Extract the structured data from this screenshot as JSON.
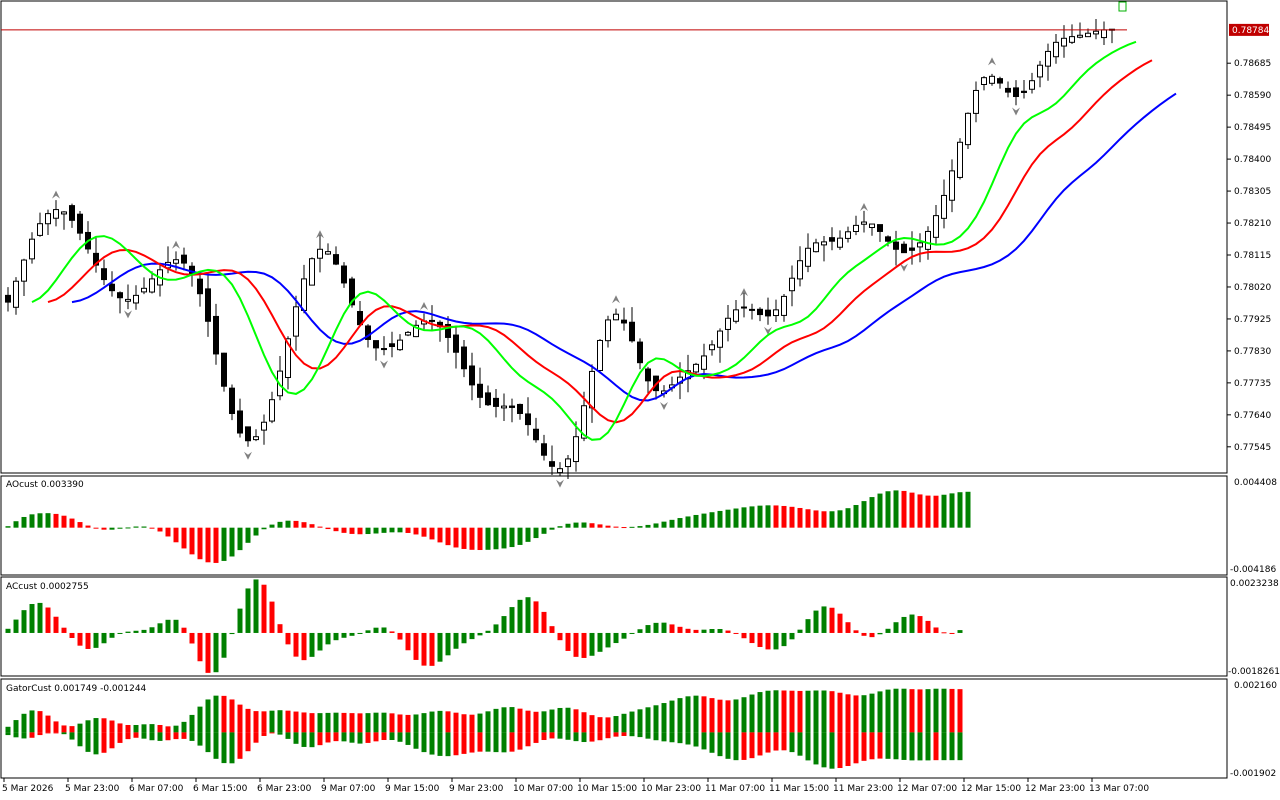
{
  "colors": {
    "background": "#ffffff",
    "frame": "#000000",
    "up_bar": "#008000",
    "down_bar": "#ff0000",
    "alligator_jaw": "#0000ff",
    "alligator_teeth": "#ff0000",
    "alligator_lips": "#00ff00",
    "price_line": "#c00000",
    "price_label_bg": "#c00000",
    "price_label_text": "#ffffff",
    "fractal": "#808080",
    "candle_bull": "#ffffff",
    "candle_bear": "#000000"
  },
  "main": {
    "current_price_label": "0.78784",
    "price_ticks": [
      "0.78685",
      "0.78590",
      "0.78495",
      "0.78400",
      "0.78305",
      "0.78210",
      "0.78115",
      "0.78020",
      "0.77925",
      "0.77830",
      "0.77735",
      "0.77640",
      "0.77545"
    ],
    "price_tick_values": [
      0.78685,
      0.7859,
      0.78495,
      0.784,
      0.78305,
      0.7821,
      0.78115,
      0.7802,
      0.77925,
      0.7783,
      0.77735,
      0.7764,
      0.77545
    ]
  },
  "ao_panel": {
    "label": "AOcust 0.003390",
    "max_label": "0.004408",
    "min_label": "-0.004186"
  },
  "ac_panel": {
    "label": "ACcust 0.0002755",
    "max_label": "0.0023238",
    "min_label": "-0.0018261"
  },
  "gator_panel": {
    "label": "GatorCust 0.001749 -0.001244",
    "max_label": "0.002160",
    "min_label": "-0.001902"
  },
  "time_axis": {
    "labels": [
      "5 Mar 2026",
      "5 Mar 23:00",
      "6 Mar 07:00",
      "6 Mar 15:00",
      "6 Mar 23:00",
      "9 Mar 07:00",
      "9 Mar 15:00",
      "9 Mar 23:00",
      "10 Mar 07:00",
      "10 Mar 15:00",
      "10 Mar 23:00",
      "11 Mar 07:00",
      "11 Mar 15:00",
      "11 Mar 23:00",
      "12 Mar 07:00",
      "12 Mar 15:00",
      "12 Mar 23:00",
      "13 Mar 07:00"
    ],
    "label_bars": [
      0,
      8,
      16,
      24,
      32,
      40,
      48,
      56,
      64,
      72,
      80,
      88,
      96,
      104,
      112,
      120,
      128,
      136
    ]
  },
  "chart_data": {
    "type": "candlestick",
    "symbol_price_current": 0.78784,
    "ylim": [
      0.77482,
      0.78855
    ],
    "bars": 139,
    "close": [
      0.77975,
      0.78037,
      0.781,
      0.78162,
      0.78208,
      0.78238,
      0.7825,
      0.78243,
      0.78218,
      0.7818,
      0.78133,
      0.78085,
      0.78042,
      0.78009,
      0.77988,
      0.77983,
      0.77995,
      0.78016,
      0.78044,
      0.78071,
      0.78093,
      0.78101,
      0.78091,
      0.78058,
      0.78,
      0.77918,
      0.77821,
      0.77725,
      0.77644,
      0.77586,
      0.77563,
      0.77575,
      0.77618,
      0.77685,
      0.7777,
      0.77866,
      0.77961,
      0.78044,
      0.78104,
      0.78132,
      0.78125,
      0.78088,
      0.78032,
      0.77967,
      0.77908,
      0.77864,
      0.77839,
      0.77834,
      0.77843,
      0.77862,
      0.77885,
      0.77906,
      0.77919,
      0.77918,
      0.77902,
      0.7787,
      0.77826,
      0.77777,
      0.77729,
      0.77692,
      0.7767,
      0.77665,
      0.77666,
      0.77662,
      0.77644,
      0.77611,
      0.77566,
      0.7752,
      0.77487,
      0.7748,
      0.77509,
      0.77575,
      0.77667,
      0.77769,
      0.77861,
      0.77922,
      0.77939,
      0.77913,
      0.7786,
      0.77795,
      0.77741,
      0.77712,
      0.77711,
      0.77729,
      0.77752,
      0.77771,
      0.7779,
      0.77815,
      0.77848,
      0.77889,
      0.77927,
      0.77952,
      0.7796,
      0.77951,
      0.77938,
      0.77934,
      0.77952,
      0.77992,
      0.78046,
      0.78098,
      0.78135,
      0.78151,
      0.78154,
      0.78156,
      0.78165,
      0.78184,
      0.78203,
      0.78213,
      0.78207,
      0.78185,
      0.78156,
      0.78132,
      0.78122,
      0.78129,
      0.78151,
      0.78185,
      0.78232,
      0.78292,
      0.78365,
      0.7845,
      0.78536,
      0.78604,
      0.78642,
      0.78646,
      0.78626,
      0.78599,
      0.78586,
      0.78598,
      0.78633,
      0.78679,
      0.7872,
      0.78747,
      0.78759,
      0.78764,
      0.78768,
      0.78774,
      0.7878,
      0.78784,
      0.78784
    ],
    "ao_values": [
      0.00014,
      0.00061,
      0.00101,
      0.00126,
      0.00136,
      0.00137,
      0.0013,
      0.00113,
      0.00086,
      0.00053,
      0.0002,
      -6e-05,
      -0.00019,
      -0.00019,
      -0.0001,
      2e-05,
      0.00011,
      0.00011,
      -4e-05,
      -0.00036,
      -0.00083,
      -0.00138,
      -0.00196,
      -0.00252,
      -0.00298,
      -0.00327,
      -0.00333,
      -0.00314,
      -0.00272,
      -0.00212,
      -0.00143,
      -0.00074,
      -0.00015,
      0.00029,
      0.00055,
      0.00066,
      0.00064,
      0.00052,
      0.00033,
      0.0001,
      -0.00013,
      -0.00033,
      -0.00049,
      -0.00059,
      -0.00062,
      -0.0006,
      -0.00055,
      -0.00049,
      -0.00044,
      -0.00044,
      -0.0005,
      -0.00064,
      -0.00085,
      -0.00111,
      -0.00139,
      -0.00165,
      -0.00187,
      -0.00201,
      -0.00209,
      -0.00211,
      -0.00209,
      -0.00204,
      -0.00196,
      -0.00183,
      -0.00163,
      -0.00134,
      -0.00098,
      -0.00058,
      -0.00019,
      0.00014,
      0.00037,
      0.00048,
      0.00049,
      0.00042,
      0.00031,
      0.00019,
      0.0001,
      6e-05,
      8e-05,
      0.00015,
      0.00026,
      0.0004,
      0.00057,
      0.00074,
      0.00091,
      0.00106,
      0.0012,
      0.00133,
      0.00146,
      0.00158,
      0.0017,
      0.00181,
      0.00192,
      0.00201,
      0.00208,
      0.00211,
      0.0021,
      0.00205,
      0.00197,
      0.00186,
      0.00174,
      0.00163,
      0.00155,
      0.00155,
      0.00164,
      0.00184,
      0.00214,
      0.00251,
      0.00289,
      0.00322,
      0.00344,
      0.00352,
      0.00347,
      0.00331,
      0.00314,
      0.00303,
      0.00302,
      0.00311,
      0.00324,
      0.00335,
      0.00339
    ],
    "ac_values": [
      0.00019,
      0.00061,
      0.00104,
      0.00132,
      0.00137,
      0.00116,
      0.00074,
      0.00024,
      -0.00023,
      -0.00058,
      -0.00073,
      -0.00068,
      -0.00047,
      -0.00022,
      -3e-05,
      6e-05,
      0.0001,
      0.00014,
      0.00026,
      0.00044,
      0.0006,
      0.0006,
      0.00024,
      -0.00048,
      -0.00129,
      -0.00182,
      -0.00179,
      -0.00113,
      -5e-05,
      0.00111,
      0.00203,
      0.00244,
      0.0022,
      0.00143,
      0.0004,
      -0.00052,
      -0.00108,
      -0.00124,
      -0.00109,
      -0.0008,
      -0.00052,
      -0.00033,
      -0.00022,
      -0.00013,
      -2e-05,
      0.00012,
      0.00024,
      0.00025,
      7e-05,
      -0.0003,
      -0.00079,
      -0.00123,
      -0.00149,
      -0.0015,
      -0.00131,
      -0.00102,
      -0.00072,
      -0.00047,
      -0.00028,
      -0.00011,
      0.0001,
      0.00039,
      0.00077,
      0.00118,
      0.00151,
      0.00163,
      0.00144,
      0.00096,
      0.00031,
      -0.00033,
      -0.00082,
      -0.00109,
      -0.00114,
      -0.00104,
      -0.00086,
      -0.00066,
      -0.00046,
      -0.00026,
      -4e-05,
      0.00017,
      0.00036,
      0.00046,
      0.00047,
      0.00039,
      0.00028,
      0.00019,
      0.00014,
      0.00015,
      0.00018,
      0.00018,
      0.00011,
      -4e-05,
      -0.00024,
      -0.00046,
      -0.00064,
      -0.00075,
      -0.00075,
      -0.0006,
      -0.00029,
      0.00015,
      0.00063,
      0.00102,
      0.00121,
      0.00115,
      0.00088,
      0.00049,
      0.00012,
      -0.00013,
      -0.00019,
      -6e-05,
      0.00019,
      0.00049,
      0.00073,
      0.00084,
      0.00077,
      0.00055,
      0.00025,
      3e-05,
      -1e-05,
      0.00013
    ],
    "gator_upper": [
      0.00025,
      0.00055,
      0.00083,
      0.00098,
      0.00095,
      0.00075,
      0.00049,
      0.00031,
      0.00028,
      0.00039,
      0.00054,
      0.00064,
      0.00063,
      0.00053,
      0.0004,
      0.00033,
      0.00033,
      0.00036,
      0.00037,
      0.00033,
      0.00027,
      0.0003,
      0.00047,
      0.00078,
      0.00115,
      0.00147,
      0.00164,
      0.00163,
      0.00147,
      0.00124,
      0.00105,
      0.00095,
      0.00094,
      0.00097,
      0.00099,
      0.00097,
      0.00093,
      0.00089,
      0.00086,
      0.00086,
      0.00087,
      0.00088,
      0.00087,
      0.00086,
      0.00085,
      0.00086,
      0.00088,
      0.00088,
      0.00085,
      0.0008,
      0.00078,
      0.0008,
      0.00086,
      0.00093,
      0.00096,
      0.00094,
      0.00088,
      0.00081,
      0.00079,
      0.00084,
      0.00094,
      0.00105,
      0.00112,
      0.00113,
      0.00106,
      0.00097,
      0.00092,
      0.00094,
      0.00102,
      0.00109,
      0.0011,
      0.00103,
      0.0009,
      0.00077,
      0.00068,
      0.00067,
      0.00073,
      0.00083,
      0.00093,
      0.00103,
      0.00112,
      0.00121,
      0.00131,
      0.00142,
      0.00153,
      0.00161,
      0.00164,
      0.00161,
      0.00153,
      0.00146,
      0.00143,
      0.00147,
      0.00157,
      0.00169,
      0.0018,
      0.00186,
      0.00188,
      0.00187,
      0.00186,
      0.00185,
      0.00186,
      0.00187,
      0.00187,
      0.00184,
      0.00177,
      0.0017,
      0.00165,
      0.00166,
      0.00173,
      0.00183,
      0.00191,
      0.00195,
      0.00195,
      0.00193,
      0.00192,
      0.00193,
      0.00195,
      0.00195,
      0.00194,
      0.00193
    ],
    "gator_lower": [
      -0.00012,
      -0.00022,
      -0.00027,
      -0.00024,
      -0.00012,
      0.0,
      3e-05,
      -8e-05,
      -0.00032,
      -0.00062,
      -0.00087,
      -0.00098,
      -0.00091,
      -0.00071,
      -0.00047,
      -0.0003,
      -0.00024,
      -0.00028,
      -0.00035,
      -0.00038,
      -0.00035,
      -0.0003,
      -0.00029,
      -0.00038,
      -0.00059,
      -0.00088,
      -0.00118,
      -0.00137,
      -0.00138,
      -0.00118,
      -0.00084,
      -0.00046,
      -0.00016,
      -4e-05,
      -0.0001,
      -0.00029,
      -0.00051,
      -0.00065,
      -0.00066,
      -0.00057,
      -0.00045,
      -0.00039,
      -0.0004,
      -0.00046,
      -0.0005,
      -0.00047,
      -0.0004,
      -0.00034,
      -0.00034,
      -0.00042,
      -0.00056,
      -0.00073,
      -0.00088,
      -0.00099,
      -0.00105,
      -0.00106,
      -0.00102,
      -0.00096,
      -0.0009,
      -0.00086,
      -0.00086,
      -0.00088,
      -0.00089,
      -0.00086,
      -0.00077,
      -0.00062,
      -0.00047,
      -0.00034,
      -0.00027,
      -0.00028,
      -0.00033,
      -0.00039,
      -0.00043,
      -0.00041,
      -0.00035,
      -0.00026,
      -0.00019,
      -0.00016,
      -0.00017,
      -0.00021,
      -0.00028,
      -0.00035,
      -0.0004,
      -0.00044,
      -0.00048,
      -0.00054,
      -0.00063,
      -0.00076,
      -0.00091,
      -0.00106,
      -0.00118,
      -0.00124,
      -0.00123,
      -0.00115,
      -0.00103,
      -0.0009,
      -0.00081,
      -0.0008,
      -0.00088,
      -0.00104,
      -0.00125,
      -0.00143,
      -0.00156,
      -0.00162,
      -0.00159,
      -0.0015,
      -0.00138,
      -0.00127,
      -0.0012,
      -0.00117,
      -0.00118,
      -0.0012,
      -0.00123,
      -0.00125,
      -0.00125,
      -0.00125,
      -0.00124,
      -0.00124,
      -0.00124,
      -0.00124
    ]
  }
}
